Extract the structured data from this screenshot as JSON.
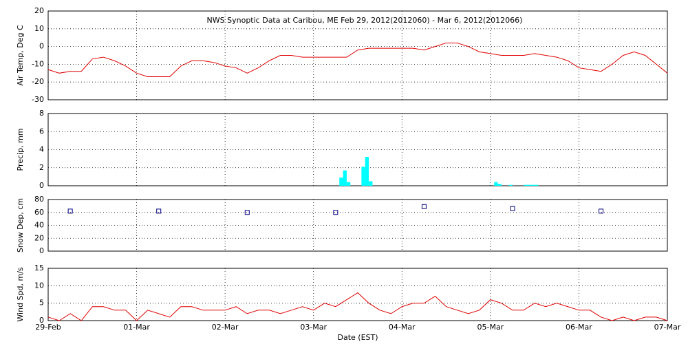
{
  "chart_data": [
    {
      "type": "line",
      "title": "NWS Synoptic Data at Caribou, ME   Feb 29, 2012(2012060) - Mar  6, 2012(2012066)",
      "y_label": "Air Temp, Deg C",
      "color": "#e00000",
      "x": [
        0,
        3,
        6,
        9,
        12,
        15,
        18,
        21,
        24,
        27,
        30,
        33,
        36,
        39,
        42,
        45,
        48,
        51,
        54,
        57,
        60,
        63,
        66,
        69,
        72,
        75,
        78,
        81,
        84,
        87,
        90,
        93,
        96,
        99,
        102,
        105,
        108,
        111,
        114,
        117,
        120,
        123,
        126,
        129,
        132,
        135,
        138,
        141,
        144,
        147,
        150,
        153,
        156,
        159,
        162,
        165,
        168
      ],
      "values": [
        -13,
        -15,
        -14,
        -14,
        -7,
        -6,
        -8,
        -11,
        -15,
        -17,
        -17,
        -17,
        -11,
        -8,
        -8,
        -9,
        -11,
        -12,
        -15,
        -12,
        -8,
        -5,
        -5,
        -6,
        -6,
        -6,
        -6,
        -6,
        -2,
        -1,
        -1,
        -1,
        -1,
        -1,
        -2,
        0,
        2,
        2,
        0,
        -3,
        -4,
        -5,
        -5,
        -5,
        -4,
        -5,
        -6,
        -8,
        -12,
        -13,
        -14,
        -10,
        -5,
        -3,
        -5,
        -10,
        -15
      ],
      "xlim": [
        0,
        168
      ],
      "xticks": [
        0,
        24,
        48,
        72,
        96,
        120,
        144,
        168
      ],
      "ylim": [
        -30,
        20
      ],
      "yticks": [
        -30,
        -20,
        -10,
        0,
        10,
        20
      ],
      "grid": true
    },
    {
      "type": "bar",
      "y_label": "Precip, mm",
      "color": "#00ffff",
      "x": [
        79,
        80,
        81,
        85,
        86,
        87,
        121,
        122,
        125,
        129,
        130,
        131,
        132
      ],
      "values": [
        0.9,
        1.7,
        0.4,
        2.1,
        3.2,
        0.5,
        0.4,
        0.2,
        0.1,
        0.1,
        0.1,
        0.1,
        0.1
      ],
      "xlim": [
        0,
        168
      ],
      "xticks": [
        0,
        24,
        48,
        72,
        96,
        120,
        144,
        168
      ],
      "ylim": [
        0,
        8
      ],
      "yticks": [
        0,
        2,
        4,
        6,
        8
      ],
      "grid": true
    },
    {
      "type": "scatter",
      "y_label": "Snow Dep, cm",
      "color": "#000080",
      "x": [
        6,
        30,
        54,
        78,
        102,
        126,
        150
      ],
      "values": [
        62,
        62,
        60,
        60,
        69,
        66,
        62
      ],
      "xlim": [
        0,
        168
      ],
      "xticks": [
        0,
        24,
        48,
        72,
        96,
        120,
        144,
        168
      ],
      "ylim": [
        0,
        80
      ],
      "yticks": [
        0,
        20,
        40,
        60,
        80
      ],
      "grid": true
    },
    {
      "type": "line",
      "y_label": "Wind Spd, m/s",
      "x_label": "Date (EST)",
      "color": "#e00000",
      "x": [
        0,
        3,
        6,
        9,
        12,
        15,
        18,
        21,
        24,
        27,
        30,
        33,
        36,
        39,
        42,
        45,
        48,
        51,
        54,
        57,
        60,
        63,
        66,
        69,
        72,
        75,
        78,
        81,
        84,
        87,
        90,
        93,
        96,
        99,
        102,
        105,
        108,
        111,
        114,
        117,
        120,
        123,
        126,
        129,
        132,
        135,
        138,
        141,
        144,
        147,
        150,
        153,
        156,
        159,
        162,
        165,
        168
      ],
      "values": [
        1,
        0,
        2,
        0,
        4,
        4,
        3,
        3,
        0,
        3,
        2,
        1,
        4,
        4,
        3,
        3,
        3,
        4,
        2,
        3,
        3,
        2,
        3,
        4,
        3,
        5,
        4,
        6,
        8,
        5,
        3,
        2,
        4,
        5,
        5,
        7,
        4,
        3,
        2,
        3,
        6,
        5,
        3,
        3,
        5,
        4,
        5,
        4,
        3,
        3,
        1,
        0,
        1,
        0,
        1,
        1,
        0
      ],
      "xlim": [
        0,
        168
      ],
      "xticks": [
        {
          "value": 0,
          "label": "29-Feb"
        },
        {
          "value": 24,
          "label": "01-Mar"
        },
        {
          "value": 48,
          "label": "02-Mar"
        },
        {
          "value": 72,
          "label": "03-Mar"
        },
        {
          "value": 96,
          "label": "04-Mar"
        },
        {
          "value": 120,
          "label": "05-Mar"
        },
        {
          "value": 144,
          "label": "06-Mar"
        },
        {
          "value": 168,
          "label": "07-Mar"
        }
      ],
      "ylim": [
        0,
        15
      ],
      "yticks": [
        0,
        5,
        10,
        15
      ],
      "grid": true
    }
  ]
}
